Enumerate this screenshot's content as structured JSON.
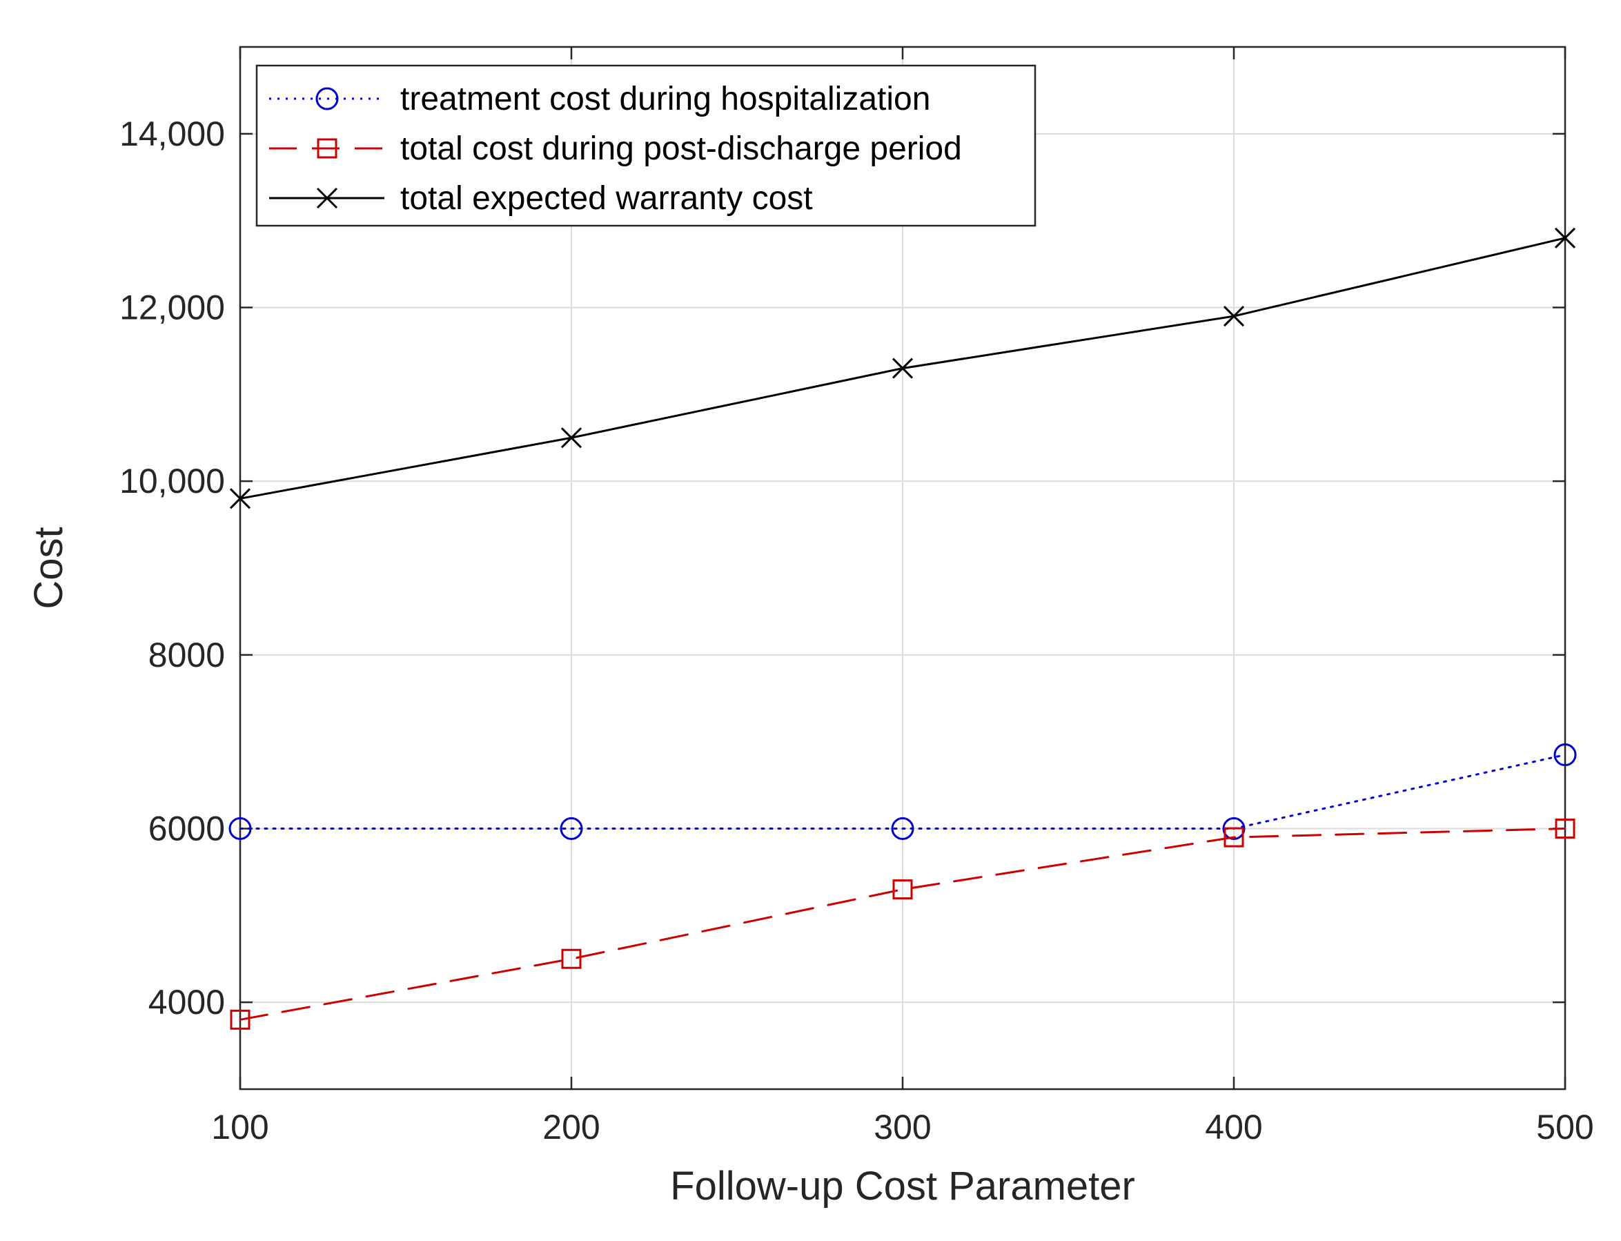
{
  "chart_data": {
    "type": "line",
    "title": "",
    "xlabel": "Follow-up Cost Parameter",
    "ylabel": "Cost",
    "x": [
      100,
      200,
      300,
      400,
      500
    ],
    "xlim": [
      100,
      500
    ],
    "ylim": [
      3000,
      15000
    ],
    "xticks": [
      {
        "value": 100,
        "label": "100"
      },
      {
        "value": 200,
        "label": "200"
      },
      {
        "value": 300,
        "label": "300"
      },
      {
        "value": 400,
        "label": "400"
      },
      {
        "value": 500,
        "label": "500"
      }
    ],
    "yticks": [
      {
        "value": 4000,
        "label": "4000"
      },
      {
        "value": 6000,
        "label": "6000"
      },
      {
        "value": 8000,
        "label": "8000"
      },
      {
        "value": 10000,
        "label": "10,000"
      },
      {
        "value": 12000,
        "label": "12,000"
      },
      {
        "value": 14000,
        "label": "14,000"
      }
    ],
    "grid": true,
    "legend_position": "top-left",
    "series": [
      {
        "name": "treatment cost during hospitalization",
        "values": [
          6000,
          6000,
          6000,
          6000,
          6850
        ],
        "color": "#0000cc",
        "line_style": "dotted",
        "marker": "circle"
      },
      {
        "name": "total cost during post-discharge period",
        "values": [
          3800,
          4500,
          5300,
          5900,
          6000
        ],
        "color": "#cc0000",
        "line_style": "dashed",
        "marker": "square"
      },
      {
        "name": "total expected warranty cost",
        "values": [
          9800,
          10500,
          11300,
          11900,
          12800
        ],
        "color": "#000000",
        "line_style": "solid",
        "marker": "x"
      }
    ]
  }
}
